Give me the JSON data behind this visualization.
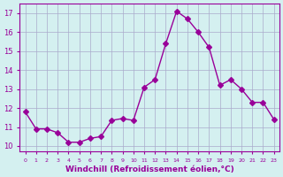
{
  "hours": [
    0,
    1,
    2,
    3,
    4,
    5,
    6,
    7,
    8,
    9,
    10,
    11,
    12,
    13,
    14,
    15,
    16,
    17,
    18,
    19,
    20,
    21,
    22,
    23
  ],
  "values": [
    11.8,
    10.9,
    10.9,
    10.7,
    10.2,
    10.2,
    10.4,
    10.5,
    11.35,
    11.45,
    11.35,
    13.1,
    13.5,
    15.4,
    17.1,
    16.7,
    16.0,
    15.2,
    13.2,
    13.5,
    13.0,
    12.3,
    12.3,
    11.4
  ],
  "line_color": "#990099",
  "marker": "D",
  "marker_size": 3,
  "bg_color": "#d4f0f0",
  "grid_color": "#aaaacc",
  "xlabel": "Windchill (Refroidissement éolien,°C)",
  "xlabel_color": "#990099",
  "ylabel_ticks": [
    10,
    11,
    12,
    13,
    14,
    15,
    16,
    17
  ],
  "ylim": [
    9.7,
    17.5
  ],
  "xlim": [
    -0.5,
    23.5
  ],
  "tick_color": "#990099",
  "axis_color": "#990099"
}
